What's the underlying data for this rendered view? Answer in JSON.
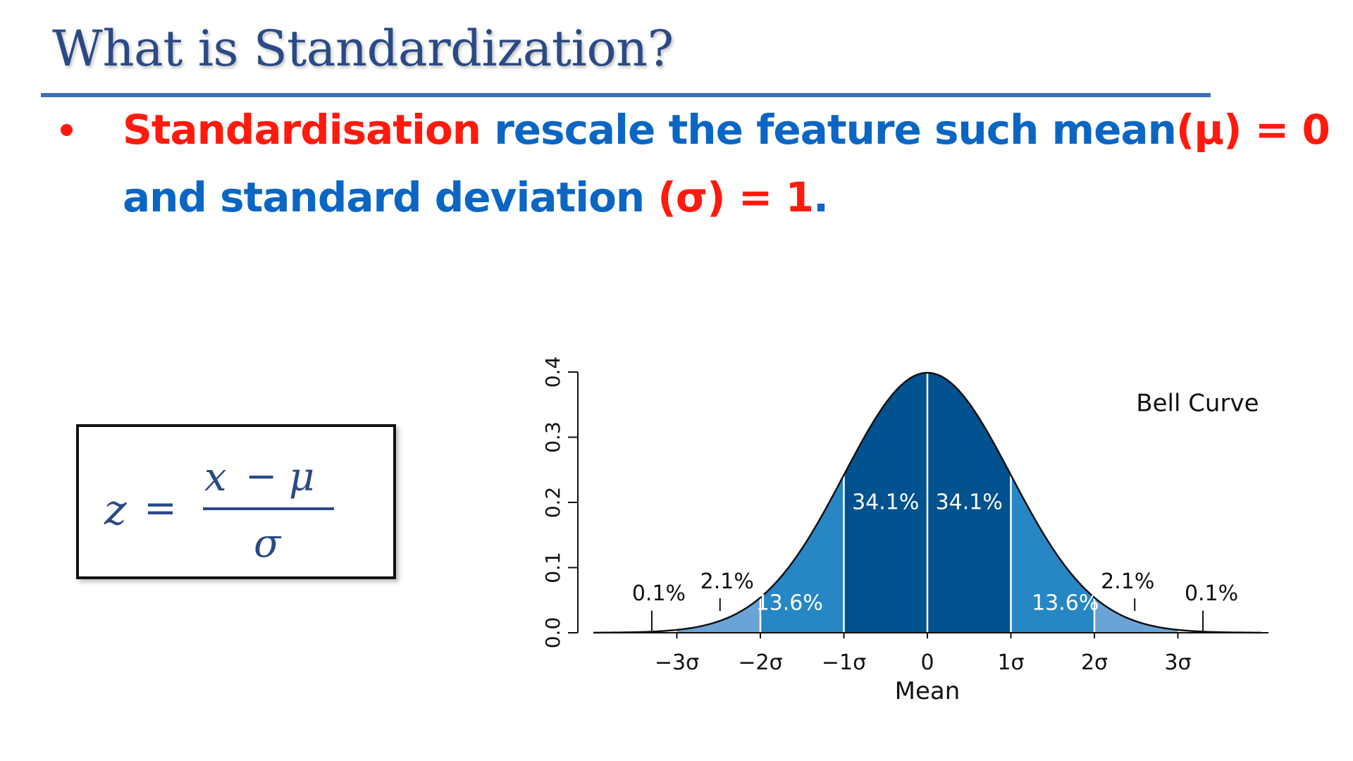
{
  "slide": {
    "title": "What is Standardization?",
    "bullet": {
      "line1": [
        {
          "text": "Standardisation",
          "color": "red"
        },
        {
          "text": " rescale the feature such mean",
          "color": "blue"
        },
        {
          "text": "(μ) = 0",
          "color": "red"
        }
      ],
      "line2": [
        {
          "text": "and standard deviation ",
          "color": "blue"
        },
        {
          "text": "(σ) = 1",
          "color": "red"
        },
        {
          "text": ".",
          "color": "blue"
        }
      ]
    },
    "formula": {
      "lhs": "z",
      "equals": "=",
      "numerator_x": "x",
      "numerator_minus": "−",
      "numerator_mu": "μ",
      "denominator": "σ"
    },
    "colors": {
      "red": "#ff1a0d",
      "blue": "#0b66c3",
      "title": "#2a4a85",
      "rule": "#3d6fc0",
      "band_1sd": "#02528f",
      "band_2sd": "#2786c4",
      "band_3sd": "#6aa4d6"
    }
  },
  "chart_data": {
    "type": "area",
    "title": "Bell Curve",
    "xlabel": "Mean",
    "ylabel": "",
    "xlim": [
      -4,
      4
    ],
    "ylim": [
      0,
      0.4
    ],
    "curve": "standard normal density",
    "x_ticks": [
      {
        "value": -3,
        "label": "−3σ"
      },
      {
        "value": -2,
        "label": "−2σ"
      },
      {
        "value": -1,
        "label": "−1σ"
      },
      {
        "value": 0,
        "label": "0"
      },
      {
        "value": 1,
        "label": "1σ"
      },
      {
        "value": 2,
        "label": "2σ"
      },
      {
        "value": 3,
        "label": "3σ"
      }
    ],
    "y_ticks": [
      "0.0",
      "0.1",
      "0.2",
      "0.3",
      "0.4"
    ],
    "y_tick_values": [
      0,
      0.1,
      0.2,
      0.3,
      0.4
    ],
    "regions": [
      {
        "from": -3,
        "to": -2,
        "percent": "2.1%",
        "shade": "band_3sd"
      },
      {
        "from": -2,
        "to": -1,
        "percent": "13.6%",
        "shade": "band_2sd"
      },
      {
        "from": -1,
        "to": 0,
        "percent": "34.1%",
        "shade": "band_1sd"
      },
      {
        "from": 0,
        "to": 1,
        "percent": "34.1%",
        "shade": "band_1sd"
      },
      {
        "from": 1,
        "to": 2,
        "percent": "13.6%",
        "shade": "band_2sd"
      },
      {
        "from": 2,
        "to": 3,
        "percent": "2.1%",
        "shade": "band_3sd"
      }
    ],
    "tail_labels": [
      {
        "x": -3.3,
        "percent": "0.1%"
      },
      {
        "x": 3.3,
        "percent": "0.1%"
      }
    ],
    "grid": false,
    "legend": "none"
  }
}
